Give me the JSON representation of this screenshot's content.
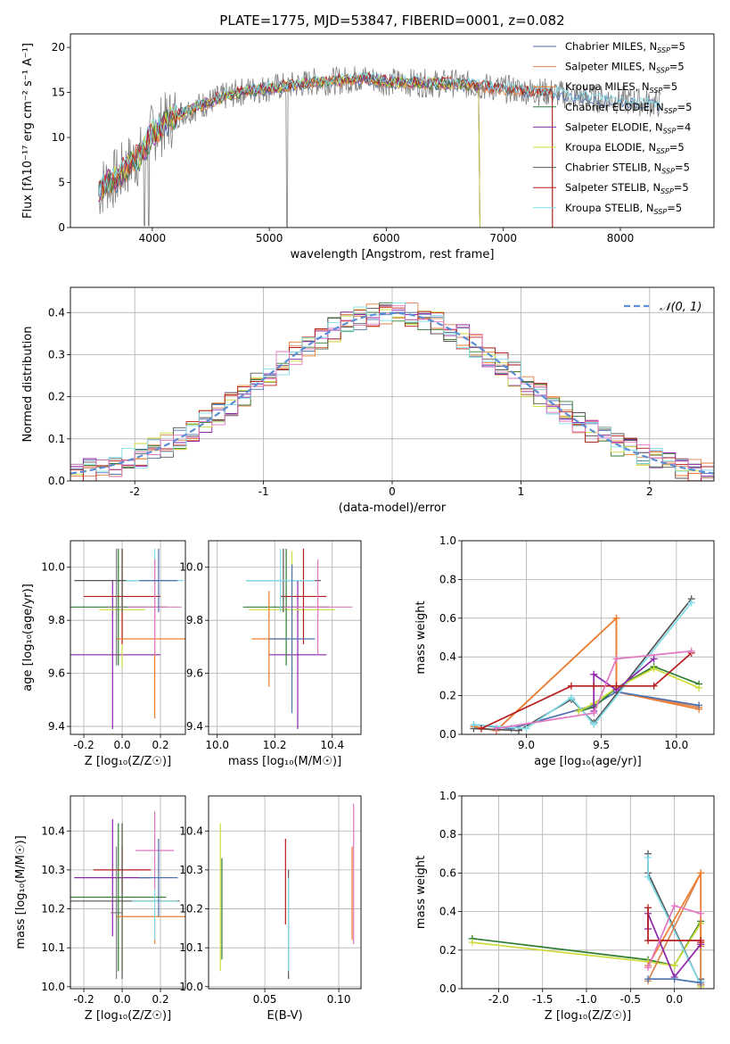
{
  "figure_title": "PLATE=1775, MJD=53847, FIBERID=0001, z=0.082",
  "colors": {
    "Chabrier MILES": "#4c72b0",
    "Salpeter MILES": "#dd8452",
    "Kroupa MILES": "#ed7d31",
    "Chabrier ELODIE": "#2e7d32",
    "Salpeter ELODIE": "#8e24aa",
    "Kroupa ELODIE": "#cddc39",
    "Chabrier STELIB": "#555555",
    "Salpeter STELIB": "#b71c1c",
    "Kroupa STELIB": "#80deea",
    "Pink": "#e377c2",
    "Gray": "#7f7f7f",
    "Normal": "#5b8ed6"
  },
  "chart_data": [
    {
      "id": "spectrum",
      "type": "line",
      "title": "PLATE=1775, MJD=53847, FIBERID=0001, z=0.082",
      "xlabel": "wavelength [Angstrom, rest frame]",
      "ylabel": "Flux [fλ10⁻¹⁷ erg cm⁻² s⁻¹ A⁻¹]",
      "xlim": [
        3300,
        8800
      ],
      "ylim": [
        0,
        21.5
      ],
      "xticks": [
        4000,
        5000,
        6000,
        7000,
        8000
      ],
      "yticks": [
        0,
        5,
        10,
        15,
        20
      ],
      "legend_position": "top-right",
      "legend": [
        {
          "label": "Chabrier MILES, N",
          "sub": "SSP",
          "suffix": "=5",
          "color": "#4c72b0"
        },
        {
          "label": "Salpeter MILES, N",
          "sub": "SSP",
          "suffix": "=5",
          "color": "#dd8452"
        },
        {
          "label": "Kroupa MILES, N",
          "sub": "SSP",
          "suffix": "=5",
          "color": "#ed7d31"
        },
        {
          "label": "Chabrier ELODIE, N",
          "sub": "SSP",
          "suffix": "=5",
          "color": "#2e7d32"
        },
        {
          "label": "Salpeter ELODIE, N",
          "sub": "SSP",
          "suffix": "=4",
          "color": "#8e24aa"
        },
        {
          "label": "Kroupa ELODIE, N",
          "sub": "SSP",
          "suffix": "=5",
          "color": "#cddc39"
        },
        {
          "label": "Chabrier STELIB, N",
          "sub": "SSP",
          "suffix": "=5",
          "color": "#555555"
        },
        {
          "label": "Salpeter STELIB, N",
          "sub": "SSP",
          "suffix": "=5",
          "color": "#b71c1c"
        },
        {
          "label": "Kroupa STELIB, N",
          "sub": "SSP",
          "suffix": "=5",
          "color": "#80deea"
        }
      ],
      "continuum": [
        [
          3540,
          4
        ],
        [
          3600,
          5
        ],
        [
          3700,
          5.5
        ],
        [
          3800,
          7
        ],
        [
          3900,
          8
        ],
        [
          4000,
          10.5
        ],
        [
          4100,
          11.5
        ],
        [
          4200,
          12.5
        ],
        [
          4400,
          13.5
        ],
        [
          4600,
          14.5
        ],
        [
          4800,
          15.2
        ],
        [
          5000,
          15.5
        ],
        [
          5200,
          15.8
        ],
        [
          5400,
          16.2
        ],
        [
          5600,
          16.3
        ],
        [
          5800,
          16.6
        ],
        [
          6000,
          16.2
        ],
        [
          6200,
          16.1
        ],
        [
          6400,
          16
        ],
        [
          6600,
          16
        ],
        [
          6800,
          15.7
        ],
        [
          7000,
          15.4
        ],
        [
          7200,
          15.2
        ],
        [
          7400,
          15
        ],
        [
          7600,
          14.6
        ],
        [
          7800,
          14.3
        ],
        [
          8000,
          14.1
        ],
        [
          8200,
          13.9
        ],
        [
          8350,
          13.7
        ]
      ]
    },
    {
      "id": "residuals",
      "type": "line",
      "xlabel": "(data-model)/error",
      "ylabel": "Normed distribution",
      "xlim": [
        -2.5,
        2.5
      ],
      "ylim": [
        0,
        0.46
      ],
      "xticks": [
        -2,
        -1,
        0,
        1,
        2
      ],
      "yticks": [
        0.0,
        0.1,
        0.2,
        0.3,
        0.4
      ],
      "grid": true,
      "legend_position": "top-right",
      "legend_label": "𝒩(0, 1)"
    },
    {
      "id": "age-vs-z",
      "type": "scatter",
      "xlabel": "Z [log₁₀(Z/Z☉)]",
      "ylabel": "age  [log₁₀(age/yr)]",
      "xlim": [
        -0.27,
        0.33
      ],
      "ylim": [
        9.37,
        10.1
      ],
      "xticks": [
        -0.2,
        0.0,
        0.2
      ],
      "yticks": [
        9.4,
        9.6,
        9.8,
        10.0
      ],
      "grid": true,
      "points": [
        {
          "x": -0.05,
          "y": 9.67,
          "xerr": 0.25,
          "yerr": 0.28,
          "color": "#8e24aa"
        },
        {
          "x": 0.0,
          "y": 9.84,
          "xerr": 0.12,
          "yerr": 0.22,
          "color": "#cddc39"
        },
        {
          "x": -0.02,
          "y": 9.85,
          "xerr": 0.25,
          "yerr": 0.22,
          "color": "#2e7d32"
        },
        {
          "x": 0.0,
          "y": 9.89,
          "xerr": 0.2,
          "yerr": 0.18,
          "color": "#b71c1c"
        },
        {
          "x": 0.0,
          "y": 9.95,
          "xerr": 0.25,
          "yerr": 0.12,
          "color": "#555555"
        },
        {
          "x": 0.17,
          "y": 9.73,
          "xerr": 0.2,
          "yerr": 0.3,
          "color": "#ed7d31"
        },
        {
          "x": 0.17,
          "y": 9.95,
          "xerr": 0.15,
          "yerr": 0.12,
          "color": "#80deea"
        },
        {
          "x": 0.17,
          "y": 9.85,
          "xerr": 0.14,
          "yerr": 0.18,
          "color": "#e377c2"
        },
        {
          "x": 0.19,
          "y": 9.95,
          "xerr": 0.1,
          "yerr": 0.12,
          "color": "#4c72b0"
        },
        {
          "x": -0.03,
          "y": 9.85,
          "xerr": 0.05,
          "yerr": 0.22,
          "color": "#7f7f7f"
        }
      ]
    },
    {
      "id": "age-vs-mass",
      "type": "scatter",
      "xlabel": "mass [log₁₀(M/M☉)]",
      "xlim": [
        9.97,
        10.5
      ],
      "ylim": [
        9.37,
        10.1
      ],
      "xticks": [
        10.0,
        10.2,
        10.4
      ],
      "yticks": [
        9.4,
        9.6,
        9.8,
        10.0
      ],
      "grid": true,
      "points": [
        {
          "x": 10.28,
          "y": 9.67,
          "xerr": 0.1,
          "yerr": 0.28,
          "color": "#8e24aa"
        },
        {
          "x": 10.26,
          "y": 9.84,
          "xerr": 0.15,
          "yerr": 0.22,
          "color": "#cddc39"
        },
        {
          "x": 10.24,
          "y": 9.85,
          "xerr": 0.15,
          "yerr": 0.22,
          "color": "#2e7d32"
        },
        {
          "x": 10.3,
          "y": 9.89,
          "xerr": 0.08,
          "yerr": 0.18,
          "color": "#b71c1c"
        },
        {
          "x": 10.23,
          "y": 9.95,
          "xerr": 0.13,
          "yerr": 0.12,
          "color": "#555555"
        },
        {
          "x": 10.18,
          "y": 9.73,
          "xerr": 0.06,
          "yerr": 0.18,
          "color": "#ed7d31"
        },
        {
          "x": 10.22,
          "y": 9.95,
          "xerr": 0.12,
          "yerr": 0.12,
          "color": "#80deea"
        },
        {
          "x": 10.35,
          "y": 9.85,
          "xerr": 0.12,
          "yerr": 0.18,
          "color": "#e377c2"
        },
        {
          "x": 10.26,
          "y": 9.73,
          "xerr": 0.08,
          "yerr": 0.28,
          "color": "#4c72b0"
        }
      ]
    },
    {
      "id": "weight-vs-age",
      "type": "line",
      "xlabel": "age  [log₁₀(age/yr)]",
      "ylabel": "mass weight",
      "xlim": [
        8.57,
        10.25
      ],
      "ylim": [
        0,
        1.0
      ],
      "xticks": [
        9.0,
        9.5,
        10.0
      ],
      "yticks": [
        0.0,
        0.2,
        0.4,
        0.6,
        0.8,
        1.0
      ],
      "grid": true,
      "series": [
        {
          "color": "#dd8452",
          "x": [
            8.65,
            8.8,
            9.6,
            9.6,
            10.15
          ],
          "y": [
            0.04,
            0.02,
            0.6,
            0.22,
            0.14
          ]
        },
        {
          "color": "#ed7d31",
          "x": [
            8.65,
            8.8,
            9.6,
            9.6,
            10.15
          ],
          "y": [
            0.04,
            0.02,
            0.6,
            0.22,
            0.13
          ]
        },
        {
          "color": "#4c72b0",
          "x": [
            8.65,
            8.9,
            9.45,
            9.6,
            10.15
          ],
          "y": [
            0.05,
            0.03,
            0.15,
            0.22,
            0.15
          ]
        },
        {
          "color": "#555555",
          "x": [
            8.65,
            8.95,
            9.3,
            9.45,
            10.1
          ],
          "y": [
            0.03,
            0.02,
            0.18,
            0.06,
            0.7
          ]
        },
        {
          "color": "#80deea",
          "x": [
            8.65,
            9.0,
            9.3,
            9.45,
            10.1
          ],
          "y": [
            0.05,
            0.03,
            0.19,
            0.05,
            0.68
          ]
        },
        {
          "color": "#2e7d32",
          "x": [
            9.35,
            9.45,
            9.6,
            9.85,
            10.15
          ],
          "y": [
            0.12,
            0.14,
            0.24,
            0.35,
            0.26
          ]
        },
        {
          "color": "#cddc39",
          "x": [
            9.35,
            9.45,
            9.6,
            9.85,
            10.15
          ],
          "y": [
            0.12,
            0.16,
            0.24,
            0.34,
            0.24
          ]
        },
        {
          "color": "#8e24aa",
          "x": [
            9.45,
            9.45,
            9.6,
            9.85
          ],
          "y": [
            0.12,
            0.31,
            0.23,
            0.39
          ]
        },
        {
          "color": "#b71c1c",
          "x": [
            8.7,
            9.3,
            9.45,
            9.6,
            9.85,
            10.1
          ],
          "y": [
            0.03,
            0.25,
            0.25,
            0.25,
            0.25,
            0.42
          ]
        },
        {
          "color": "#e377c2",
          "x": [
            8.8,
            9.45,
            9.6,
            10.1
          ],
          "y": [
            0.03,
            0.11,
            0.39,
            0.43
          ]
        }
      ]
    },
    {
      "id": "mass-vs-z",
      "type": "scatter",
      "xlabel": "Z [log₁₀(Z/Z☉)]",
      "ylabel": "mass [log₁₀(M/M☉)]",
      "xlim": [
        -0.27,
        0.33
      ],
      "ylim": [
        9.995,
        10.49
      ],
      "xticks": [
        -0.2,
        0.0,
        0.2
      ],
      "yticks": [
        10.0,
        10.1,
        10.2,
        10.3,
        10.4
      ],
      "grid": true,
      "points": [
        {
          "x": -0.05,
          "y": 10.28,
          "xerr": 0.2,
          "yerr": 0.15,
          "color": "#8e24aa"
        },
        {
          "x": 0.0,
          "y": 10.23,
          "xerr": 0.1,
          "yerr": 0.19,
          "color": "#cddc39"
        },
        {
          "x": -0.02,
          "y": 10.23,
          "xerr": 0.25,
          "yerr": 0.19,
          "color": "#2e7d32"
        },
        {
          "x": 0.0,
          "y": 10.3,
          "xerr": 0.15,
          "yerr": 0.06,
          "color": "#b71c1c"
        },
        {
          "x": 0.0,
          "y": 10.22,
          "xerr": 0.3,
          "yerr": 0.2,
          "color": "#555555"
        },
        {
          "x": 0.17,
          "y": 10.18,
          "xerr": 0.2,
          "yerr": 0.07,
          "color": "#ed7d31"
        },
        {
          "x": 0.17,
          "y": 10.22,
          "xerr": 0.12,
          "yerr": 0.1,
          "color": "#80deea"
        },
        {
          "x": 0.17,
          "y": 10.35,
          "xerr": 0.1,
          "yerr": 0.1,
          "color": "#e377c2"
        },
        {
          "x": 0.19,
          "y": 10.28,
          "xerr": 0.1,
          "yerr": 0.1,
          "color": "#4c72b0"
        },
        {
          "x": -0.03,
          "y": 10.19,
          "xerr": 0.03,
          "yerr": 0.17,
          "color": "#7f7f7f"
        }
      ]
    },
    {
      "id": "ebv",
      "type": "scatter",
      "xlabel": "E(B-V)",
      "xlim": [
        0.012,
        0.115
      ],
      "ylim": [
        9.995,
        10.49
      ],
      "xticks": [
        0.05,
        0.1
      ],
      "yticks": [
        10.0,
        10.1,
        10.2,
        10.3,
        10.4
      ],
      "grid": true,
      "points": [
        {
          "x": 0.02,
          "y": 10.23,
          "yerr": 0.19,
          "color": "#cddc39"
        },
        {
          "x": 0.021,
          "y": 10.2,
          "yerr": 0.13,
          "color": "#2e7d32"
        },
        {
          "x": 0.064,
          "y": 10.27,
          "yerr": 0.11,
          "color": "#b71c1c"
        },
        {
          "x": 0.066,
          "y": 10.16,
          "yerr": 0.14,
          "color": "#555555"
        },
        {
          "x": 0.066,
          "y": 10.16,
          "yerr": 0.12,
          "color": "#80deea"
        },
        {
          "x": 0.109,
          "y": 10.24,
          "yerr": 0.12,
          "color": "#ed7d31"
        },
        {
          "x": 0.11,
          "y": 10.29,
          "yerr": 0.18,
          "color": "#e377c2"
        }
      ]
    },
    {
      "id": "weight-vs-z",
      "type": "line",
      "xlabel": "Z [log₁₀(Z/Z☉)]",
      "ylabel": "mass weight",
      "xlim": [
        -2.42,
        0.45
      ],
      "ylim": [
        0,
        1.0
      ],
      "xticks": [
        -2.0,
        -1.5,
        -1.0,
        -0.5,
        0.0
      ],
      "yticks": [
        0.0,
        0.2,
        0.4,
        0.6,
        0.8,
        1.0
      ],
      "grid": true,
      "series": [
        {
          "color": "#2e7d32",
          "x": [
            -2.3,
            -0.3,
            0.0,
            0.3,
            0.3
          ],
          "y": [
            0.26,
            0.15,
            0.12,
            0.35,
            0.02
          ]
        },
        {
          "color": "#cddc39",
          "x": [
            -2.3,
            -0.3,
            0.0,
            0.3,
            0.3
          ],
          "y": [
            0.24,
            0.14,
            0.12,
            0.34,
            0.01
          ]
        },
        {
          "color": "#555555",
          "x": [
            -0.3,
            -0.3,
            0.3,
            0.3
          ],
          "y": [
            0.7,
            0.6,
            0.02,
            0.05
          ]
        },
        {
          "color": "#80deea",
          "x": [
            -0.3,
            -0.3,
            0.3,
            0.3
          ],
          "y": [
            0.68,
            0.58,
            0.02,
            0.04
          ]
        },
        {
          "color": "#dd8452",
          "x": [
            -0.3,
            0.3,
            0.3
          ],
          "y": [
            0.04,
            0.6,
            0.02
          ]
        },
        {
          "color": "#ed7d31",
          "x": [
            -0.3,
            0.3,
            0.3
          ],
          "y": [
            0.12,
            0.6,
            0.22
          ]
        },
        {
          "color": "#8e24aa",
          "x": [
            -0.3,
            -0.3,
            0.0,
            0.3
          ],
          "y": [
            0.31,
            0.39,
            0.06,
            0.23
          ]
        },
        {
          "color": "#b71c1c",
          "x": [
            -0.3,
            -0.3,
            0.3,
            0.3
          ],
          "y": [
            0.42,
            0.25,
            0.25,
            0.24
          ]
        },
        {
          "color": "#e377c2",
          "x": [
            -0.3,
            0.0,
            0.3
          ],
          "y": [
            0.11,
            0.43,
            0.39
          ]
        },
        {
          "color": "#4c72b0",
          "x": [
            -0.3,
            0.0,
            0.3
          ],
          "y": [
            0.05,
            0.05,
            0.03
          ]
        }
      ]
    }
  ]
}
